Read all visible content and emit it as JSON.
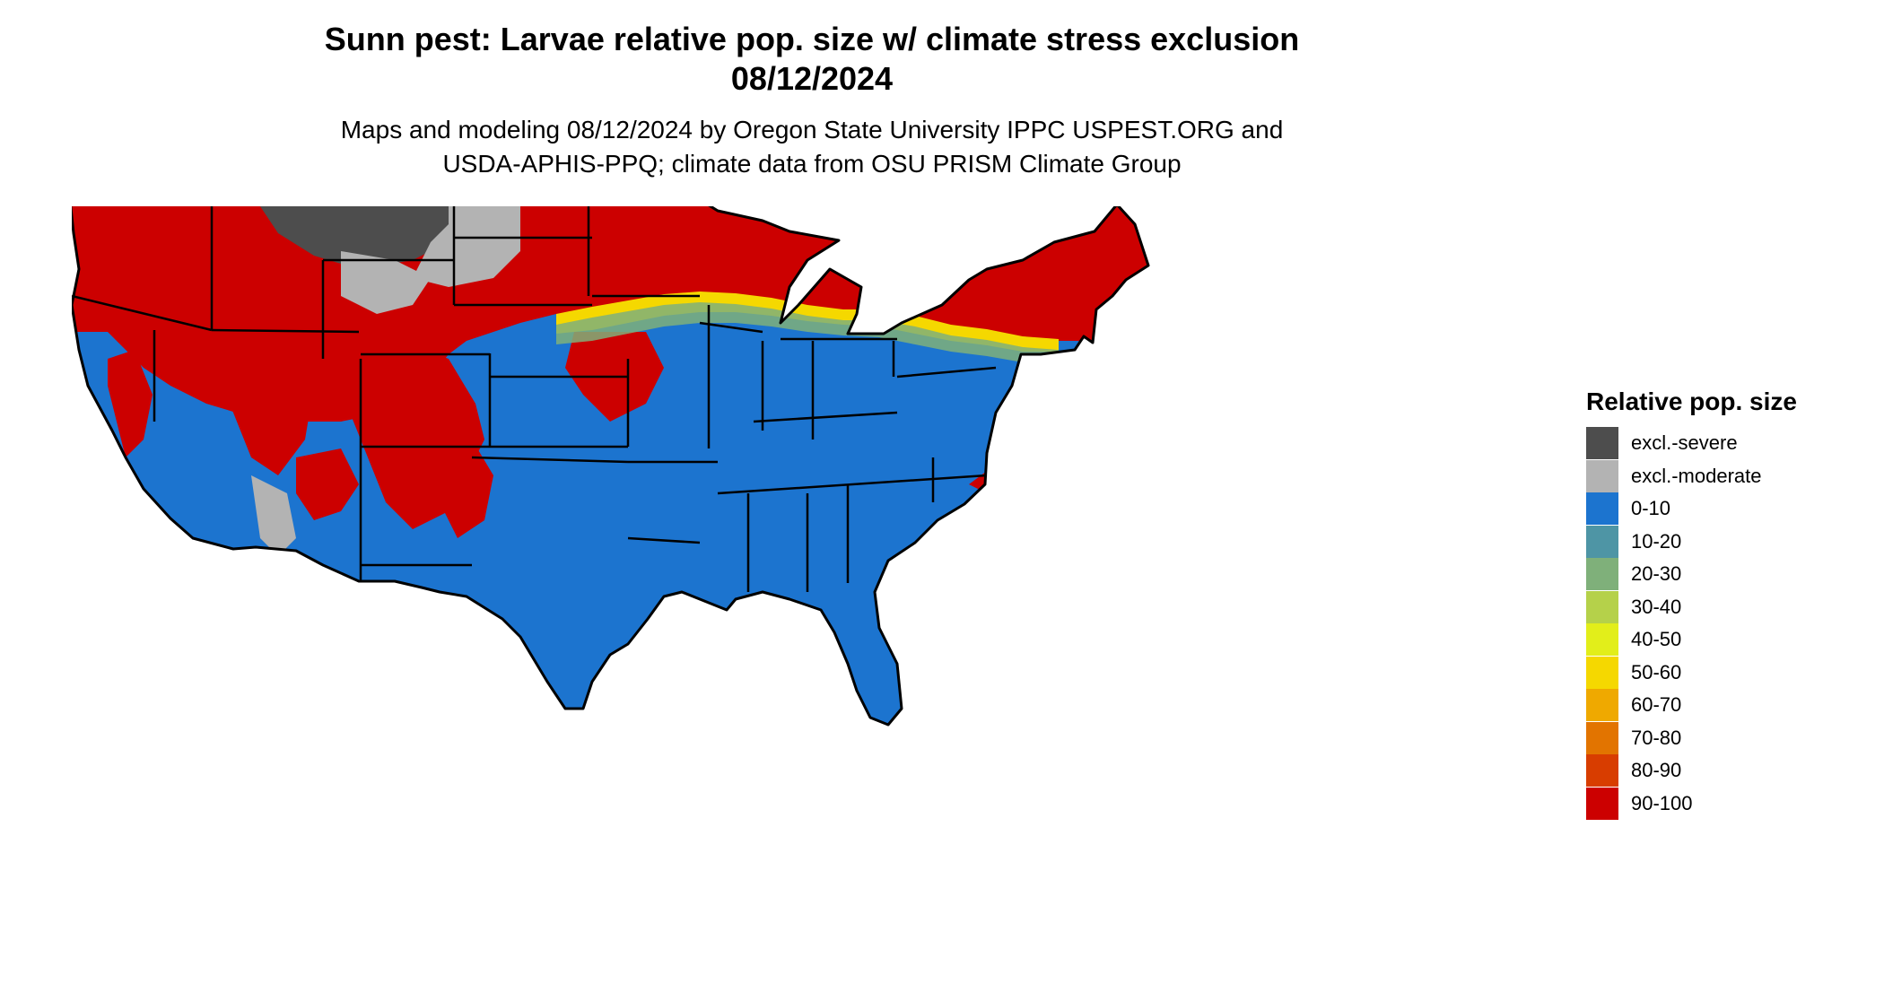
{
  "title": {
    "line1": "Sunn pest: Larvae relative pop. size w/ climate stress exclusion",
    "line2": "08/12/2024"
  },
  "subtitle": {
    "line1": "Maps and modeling 08/12/2024 by Oregon State University IPPC USPEST.ORG and",
    "line2": "USDA-APHIS-PPQ; climate data from OSU PRISM Climate Group"
  },
  "legend": {
    "title": "Relative pop. size",
    "items": [
      {
        "label": "excl.-severe",
        "color": "#4d4d4d"
      },
      {
        "label": "excl.-moderate",
        "color": "#b3b3b3"
      },
      {
        "label": "0-10",
        "color": "#1c74cf"
      },
      {
        "label": "10-20",
        "color": "#4e95a5"
      },
      {
        "label": "20-30",
        "color": "#7fb07a"
      },
      {
        "label": "30-40",
        "color": "#b5d14a"
      },
      {
        "label": "40-50",
        "color": "#e2ee1a"
      },
      {
        "label": "50-60",
        "color": "#f5d800"
      },
      {
        "label": "60-70",
        "color": "#efa900"
      },
      {
        "label": "70-80",
        "color": "#e27400"
      },
      {
        "label": "80-90",
        "color": "#d83d00"
      },
      {
        "label": "90-100",
        "color": "#cc0000"
      }
    ]
  },
  "map": {
    "region": "contiguous-us",
    "colors": {
      "base": "#1c74cf",
      "high": "#cc0000",
      "transition": "#f5d800",
      "mid": "#7fb07a",
      "excl_severe": "#4d4d4d",
      "excl_moderate": "#b3b3b3",
      "border": "#000000"
    }
  }
}
